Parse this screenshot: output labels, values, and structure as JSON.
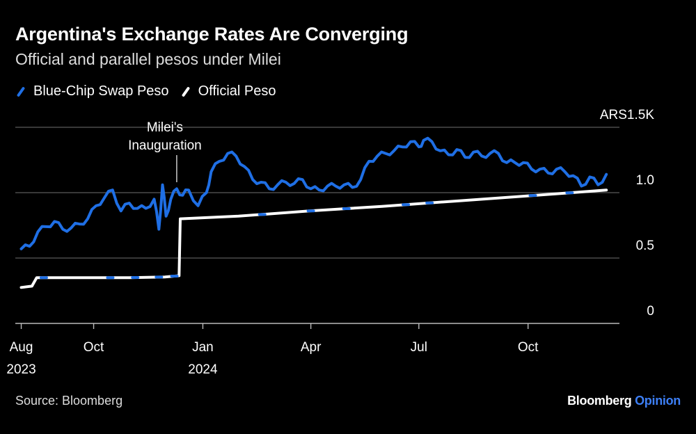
{
  "title": "Argentina's Exchange Rates Are Converging",
  "subtitle": "Official and parallel pesos under Milei",
  "source": "Source: Bloomberg",
  "brand": {
    "name": "Bloomberg",
    "suffix": "Opinion"
  },
  "colors": {
    "background": "#000000",
    "blue_chip": "#1f6fe5",
    "official": "#ffffff",
    "grid": "#5a5a5a",
    "brand_accent": "#3d7ff5"
  },
  "chart_data": {
    "type": "line",
    "title": "Argentina's Exchange Rates Are Converging",
    "subtitle": "Official and parallel pesos under Milei",
    "ylabel": "",
    "unit_label": "ARS1.5K",
    "ylim": [
      0,
      1500
    ],
    "yticks": [
      {
        "value": 0,
        "label": "0"
      },
      {
        "value": 500,
        "label": "0.5"
      },
      {
        "value": 1000,
        "label": "1.0"
      },
      {
        "value": 1500,
        "label": "ARS1.5K"
      }
    ],
    "xticks": [
      {
        "date": "2023-08-01",
        "label": [
          "Aug",
          "2023"
        ]
      },
      {
        "date": "2023-10-01",
        "label": [
          "Oct"
        ]
      },
      {
        "date": "2024-01-01",
        "label": [
          "Jan",
          "2024"
        ]
      },
      {
        "date": "2024-04-01",
        "label": [
          "Apr"
        ]
      },
      {
        "date": "2024-07-01",
        "label": [
          "Jul"
        ]
      },
      {
        "date": "2024-10-01",
        "label": [
          "Oct"
        ]
      }
    ],
    "grid": true,
    "legend_position": "top-left",
    "annotations": [
      {
        "date": "2023-12-10",
        "text": [
          "Milei's",
          "Inauguration"
        ]
      }
    ],
    "series": [
      {
        "name": "Blue-Chip Swap Peso",
        "color": "#1f6fe5",
        "points": [
          [
            "2023-08-01",
            570
          ],
          [
            "2023-08-08",
            590
          ],
          [
            "2023-08-15",
            700
          ],
          [
            "2023-08-22",
            740
          ],
          [
            "2023-08-29",
            780
          ],
          [
            "2023-09-05",
            720
          ],
          [
            "2023-09-12",
            730
          ],
          [
            "2023-09-19",
            760
          ],
          [
            "2023-09-26",
            800
          ],
          [
            "2023-10-03",
            900
          ],
          [
            "2023-10-10",
            960
          ],
          [
            "2023-10-17",
            1020
          ],
          [
            "2023-10-24",
            860
          ],
          [
            "2023-10-31",
            920
          ],
          [
            "2023-11-07",
            880
          ],
          [
            "2023-11-14",
            880
          ],
          [
            "2023-11-21",
            950
          ],
          [
            "2023-11-25",
            720
          ],
          [
            "2023-11-28",
            1060
          ],
          [
            "2023-12-01",
            820
          ],
          [
            "2023-12-05",
            950
          ],
          [
            "2023-12-10",
            1030
          ],
          [
            "2023-12-15",
            980
          ],
          [
            "2023-12-20",
            1020
          ],
          [
            "2023-12-28",
            900
          ],
          [
            "2024-01-04",
            1000
          ],
          [
            "2024-01-08",
            1160
          ],
          [
            "2024-01-15",
            1240
          ],
          [
            "2024-01-22",
            1300
          ],
          [
            "2024-01-29",
            1280
          ],
          [
            "2024-02-05",
            1200
          ],
          [
            "2024-02-12",
            1100
          ],
          [
            "2024-02-19",
            1080
          ],
          [
            "2024-02-26",
            1030
          ],
          [
            "2024-03-04",
            1060
          ],
          [
            "2024-03-11",
            1080
          ],
          [
            "2024-03-18",
            1070
          ],
          [
            "2024-03-25",
            1100
          ],
          [
            "2024-04-01",
            1030
          ],
          [
            "2024-04-08",
            1020
          ],
          [
            "2024-04-15",
            1050
          ],
          [
            "2024-04-22",
            1050
          ],
          [
            "2024-04-29",
            1060
          ],
          [
            "2024-05-06",
            1040
          ],
          [
            "2024-05-13",
            1100
          ],
          [
            "2024-05-20",
            1240
          ],
          [
            "2024-05-27",
            1280
          ],
          [
            "2024-06-03",
            1300
          ],
          [
            "2024-06-10",
            1320
          ],
          [
            "2024-06-17",
            1350
          ],
          [
            "2024-06-24",
            1390
          ],
          [
            "2024-07-01",
            1350
          ],
          [
            "2024-07-05",
            1400
          ],
          [
            "2024-07-12",
            1390
          ],
          [
            "2024-07-19",
            1320
          ],
          [
            "2024-07-26",
            1290
          ],
          [
            "2024-08-02",
            1330
          ],
          [
            "2024-08-09",
            1270
          ],
          [
            "2024-08-16",
            1310
          ],
          [
            "2024-08-23",
            1280
          ],
          [
            "2024-08-30",
            1300
          ],
          [
            "2024-09-06",
            1300
          ],
          [
            "2024-09-13",
            1230
          ],
          [
            "2024-09-20",
            1230
          ],
          [
            "2024-09-27",
            1230
          ],
          [
            "2024-10-04",
            1180
          ],
          [
            "2024-10-11",
            1180
          ],
          [
            "2024-10-18",
            1150
          ],
          [
            "2024-10-25",
            1180
          ],
          [
            "2024-11-01",
            1160
          ],
          [
            "2024-11-08",
            1130
          ],
          [
            "2024-11-15",
            1050
          ],
          [
            "2024-11-22",
            1120
          ],
          [
            "2024-11-29",
            1060
          ],
          [
            "2024-12-06",
            1140
          ]
        ]
      },
      {
        "name": "Official Peso",
        "color": "#ffffff",
        "points": [
          [
            "2023-08-01",
            275
          ],
          [
            "2023-08-10",
            285
          ],
          [
            "2023-08-14",
            350
          ],
          [
            "2023-08-31",
            350
          ],
          [
            "2023-10-31",
            350
          ],
          [
            "2023-11-30",
            355
          ],
          [
            "2023-12-12",
            365
          ],
          [
            "2023-12-13",
            800
          ],
          [
            "2024-01-31",
            820
          ],
          [
            "2024-03-31",
            860
          ],
          [
            "2024-05-31",
            895
          ],
          [
            "2024-07-31",
            935
          ],
          [
            "2024-09-30",
            975
          ],
          [
            "2024-10-31",
            995
          ],
          [
            "2024-12-06",
            1020
          ]
        ]
      }
    ]
  }
}
